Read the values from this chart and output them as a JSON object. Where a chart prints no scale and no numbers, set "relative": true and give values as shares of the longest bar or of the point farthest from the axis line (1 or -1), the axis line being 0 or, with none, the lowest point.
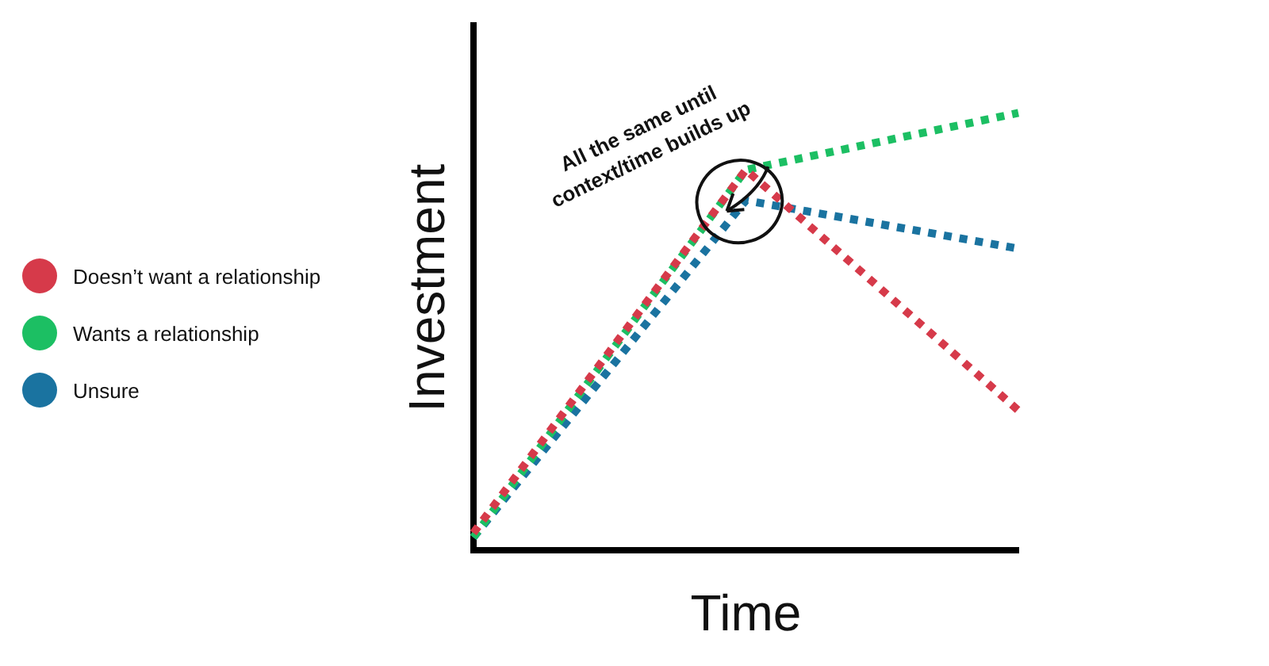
{
  "chart_data": {
    "type": "line",
    "relative": true,
    "xlabel": "Time",
    "ylabel": "Investment",
    "categories": [
      null,
      null,
      null
    ],
    "grid": false,
    "legend": "left",
    "line_style": "dotted",
    "marker": "none",
    "annotations": [
      "All the same until context/time builds up"
    ],
    "series": [
      {
        "name": "Doesn’t want a relationship",
        "color": "#d63a4a",
        "values": [
          0.04,
          0.87,
          0.32
        ]
      },
      {
        "name": "Wants a relationship",
        "color": "#1cbf63",
        "values": [
          0.03,
          0.87,
          1
        ]
      },
      {
        "name": "Unsure",
        "color": "#1a73a0",
        "values": [
          0.03,
          0.8,
          0.69
        ]
      }
    ]
  }
}
